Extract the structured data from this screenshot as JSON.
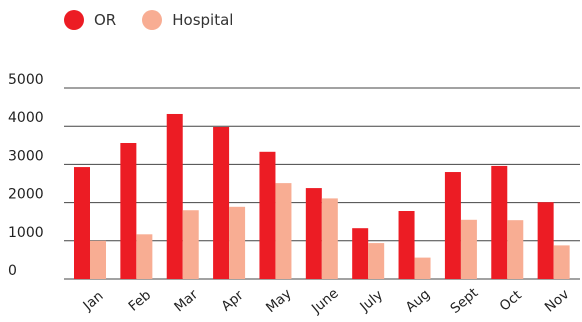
{
  "chart_data": {
    "type": "bar",
    "categories": [
      "Jan",
      "Feb",
      "Mar",
      "Apr",
      "May",
      "June",
      "July",
      "Aug",
      "Sept",
      "Oct",
      "Nov"
    ],
    "series": [
      {
        "name": "OR",
        "color": "#ec1c24",
        "values": [
          2930,
          3560,
          4320,
          3980,
          3330,
          2380,
          1330,
          1780,
          2800,
          2960,
          2010
        ]
      },
      {
        "name": "Hospital",
        "color": "#f8ad93",
        "values": [
          1000,
          1170,
          1800,
          1890,
          2510,
          2110,
          940,
          560,
          1550,
          1540,
          880
        ]
      }
    ],
    "yticks": [
      0,
      1000,
      2000,
      3000,
      4000,
      5000
    ],
    "ylim": [
      0,
      5000
    ],
    "grid": true,
    "legend_position": "top-left"
  }
}
